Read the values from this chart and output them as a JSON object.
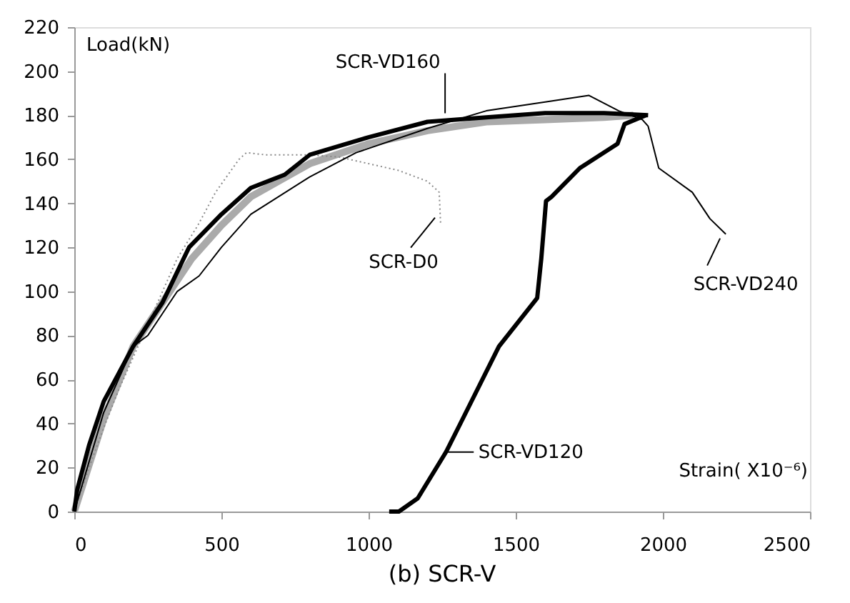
{
  "chart_data": {
    "type": "line",
    "title": "(b) SCR-V",
    "xlabel": "Strain( X10⁻⁶)",
    "ylabel": "Load(kN)",
    "xlim": [
      0,
      2500
    ],
    "xticks": [
      0,
      500,
      1000,
      1500,
      2000,
      2500
    ],
    "ylim": [
      0,
      220
    ],
    "yticks": [
      0,
      20,
      40,
      60,
      80,
      100,
      120,
      140,
      160,
      180,
      200,
      220
    ],
    "grid": false,
    "marker": "none",
    "series": [
      {
        "color": "#aaaaaa",
        "line_style": "solid",
        "x": [
          0,
          100,
          200,
          300,
          400,
          500,
          600,
          800,
          1000,
          1200,
          1400,
          1600,
          1800,
          1900
        ],
        "values": [
          0,
          42,
          75,
          95,
          115,
          130,
          143,
          158,
          167,
          173,
          177,
          178,
          179,
          180
        ]
      },
      {
        "color": "#888888",
        "line_style": "dotted",
        "x": [
          0,
          50,
          100,
          150,
          200,
          250,
          300,
          350,
          420,
          480,
          560,
          585,
          650,
          800,
          900,
          1000,
          1100,
          1200,
          1240,
          1245
        ],
        "values": [
          0,
          20,
          38,
          55,
          70,
          85,
          100,
          115,
          130,
          145,
          160,
          163,
          162,
          162,
          161,
          158,
          155,
          150,
          145,
          130
        ]
      },
      {
        "color": "#000000",
        "line_style": "solid",
        "x": [
          0,
          10,
          50,
          100,
          200,
          300,
          390,
          500,
          600,
          715,
          800,
          1000,
          1200,
          1400,
          1600,
          1800,
          1950
        ],
        "values": [
          0,
          10,
          30,
          50,
          75,
          95,
          120,
          135,
          147,
          153,
          162,
          170,
          177,
          179,
          181,
          181,
          180
        ]
      },
      {
        "color": "#000000",
        "line_style": "solid",
        "x": [
          0,
          100,
          200,
          250,
          350,
          424,
          500,
          600,
          800,
          958,
          1200,
          1400,
          1600,
          1749,
          1850,
          1930,
          1950,
          1986,
          2100,
          2160,
          2214
        ],
        "values": [
          0,
          45,
          75,
          80,
          100,
          107,
          120,
          135,
          152,
          163,
          174,
          182,
          186,
          189,
          182,
          178,
          175,
          156,
          145,
          133,
          126
        ]
      },
      {
        "color": "#000000",
        "line_style": "solid",
        "x": [
          1070,
          1103,
          1167,
          1263,
          1312,
          1443,
          1573,
          1587,
          1603,
          1622,
          1718,
          1846,
          1870,
          1943
        ],
        "values": [
          0,
          0,
          6,
          27,
          40,
          75,
          97,
          115,
          141,
          143,
          156,
          167,
          176,
          180
        ]
      }
    ],
    "annotations": [
      {
        "text": "SCR-VD160",
        "x": 1260,
        "y": 177
      },
      {
        "text": "SCR-D0",
        "x": 1250,
        "y": 138
      },
      {
        "text": "SCR-VD240",
        "x": 2209,
        "y": 126
      },
      {
        "text": "SCR-VD120",
        "x": 1270,
        "y": 27
      }
    ]
  }
}
